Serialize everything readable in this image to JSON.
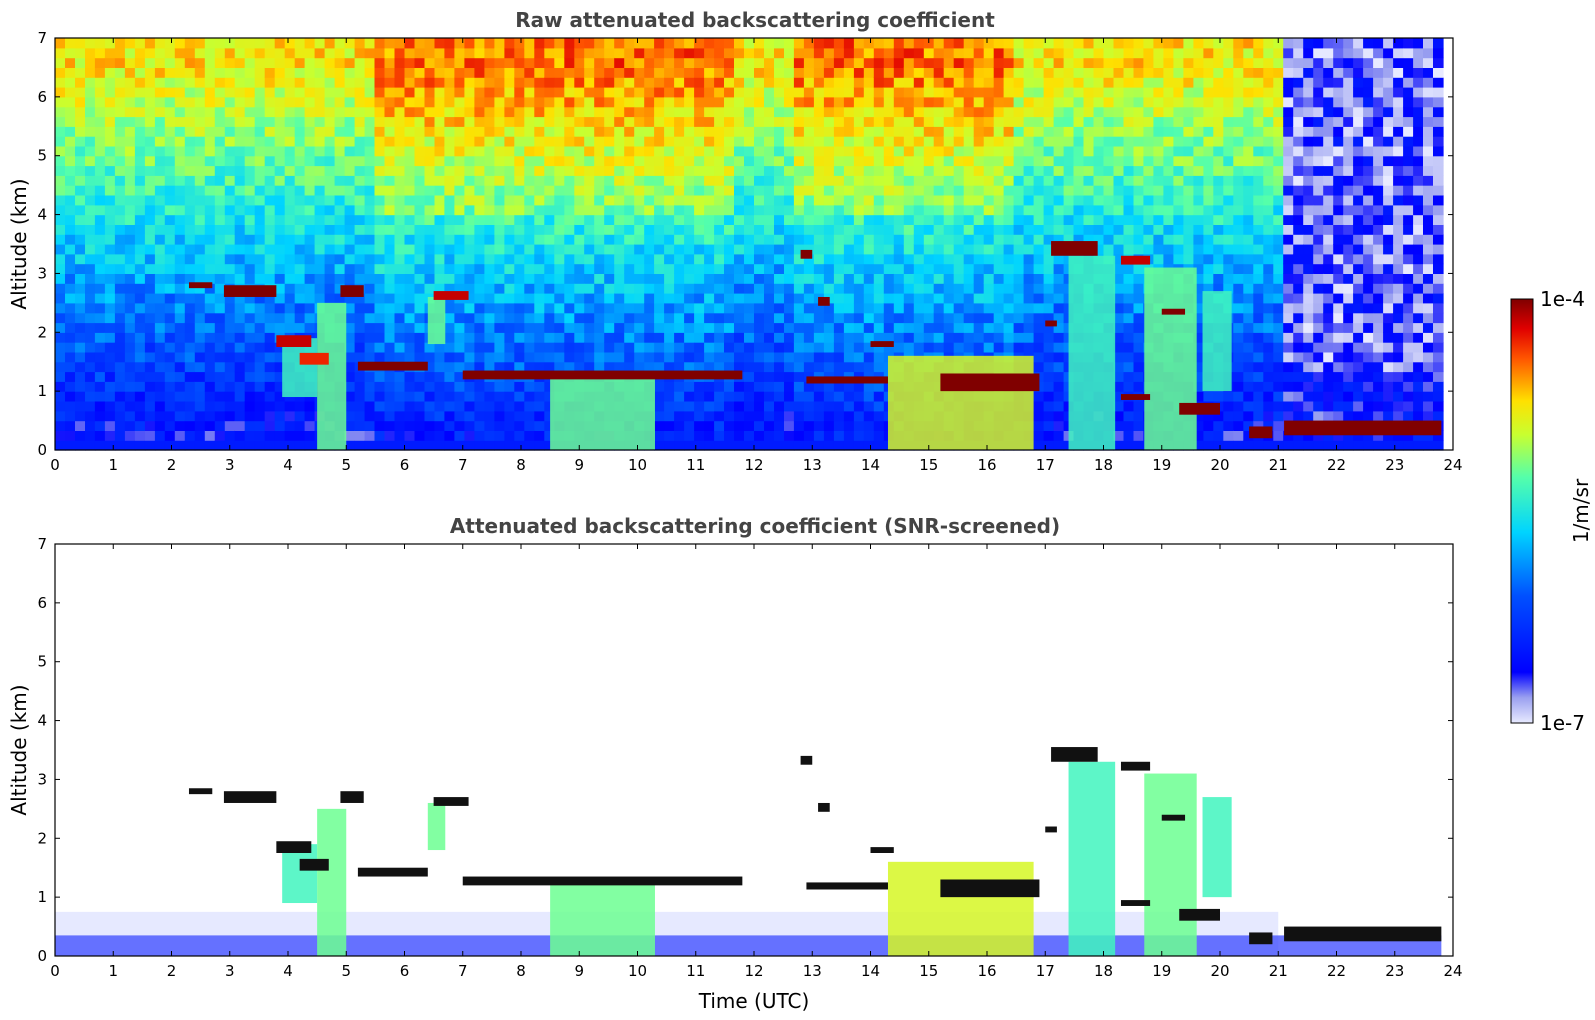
{
  "chart_data": [
    {
      "type": "heatmap",
      "title": "Raw attenuated backscattering coefficient",
      "xlabel": "",
      "ylabel": "Altitude (km)",
      "xlim": [
        0,
        24
      ],
      "ylim": [
        0,
        7
      ],
      "x_ticks": [
        "0",
        "1",
        "2",
        "3",
        "4",
        "5",
        "6",
        "7",
        "8",
        "9",
        "10",
        "11",
        "12",
        "13",
        "14",
        "15",
        "16",
        "17",
        "18",
        "19",
        "20",
        "21",
        "22",
        "23",
        "24"
      ],
      "y_ticks": [
        "0",
        "1",
        "2",
        "3",
        "4",
        "5",
        "6",
        "7"
      ],
      "background_noise": "high",
      "layers": [
        {
          "x": [
            2.3,
            2.7
          ],
          "y": [
            2.75,
            2.85
          ],
          "level": 1.0
        },
        {
          "x": [
            2.9,
            3.8
          ],
          "y": [
            2.6,
            2.8
          ],
          "level": 1.0
        },
        {
          "x": [
            3.8,
            4.4
          ],
          "y": [
            1.75,
            1.95
          ],
          "level": 0.95
        },
        {
          "x": [
            4.2,
            4.7
          ],
          "y": [
            1.45,
            1.65
          ],
          "level": 0.9
        },
        {
          "x": [
            4.9,
            5.3
          ],
          "y": [
            2.6,
            2.8
          ],
          "level": 1.0
        },
        {
          "x": [
            5.2,
            6.4
          ],
          "y": [
            1.35,
            1.5
          ],
          "level": 1.0
        },
        {
          "x": [
            6.5,
            7.1
          ],
          "y": [
            2.55,
            2.7
          ],
          "level": 0.95
        },
        {
          "x": [
            7.0,
            11.8
          ],
          "y": [
            1.2,
            1.35
          ],
          "level": 1.0
        },
        {
          "x": [
            12.8,
            13.0
          ],
          "y": [
            3.25,
            3.4
          ],
          "level": 1.0
        },
        {
          "x": [
            13.1,
            13.3
          ],
          "y": [
            2.45,
            2.6
          ],
          "level": 1.0
        },
        {
          "x": [
            12.9,
            14.3
          ],
          "y": [
            1.13,
            1.25
          ],
          "level": 1.0
        },
        {
          "x": [
            14.0,
            14.4
          ],
          "y": [
            1.75,
            1.85
          ],
          "level": 1.0
        },
        {
          "x": [
            15.2,
            16.9
          ],
          "y": [
            1.0,
            1.3
          ],
          "level": 1.0
        },
        {
          "x": [
            17.1,
            17.9
          ],
          "y": [
            3.3,
            3.55
          ],
          "level": 1.0
        },
        {
          "x": [
            18.3,
            18.8
          ],
          "y": [
            3.15,
            3.3
          ],
          "level": 0.95
        },
        {
          "x": [
            17.0,
            17.2
          ],
          "y": [
            2.1,
            2.2
          ],
          "level": 1.0
        },
        {
          "x": [
            19.0,
            19.4
          ],
          "y": [
            2.3,
            2.4
          ],
          "level": 1.0
        },
        {
          "x": [
            19.3,
            20.0
          ],
          "y": [
            0.6,
            0.8
          ],
          "level": 1.0
        },
        {
          "x": [
            18.3,
            18.8
          ],
          "y": [
            0.85,
            0.95
          ],
          "level": 1.0
        },
        {
          "x": [
            20.5,
            20.9
          ],
          "y": [
            0.2,
            0.4
          ],
          "level": 1.0
        },
        {
          "x": [
            21.1,
            23.8
          ],
          "y": [
            0.25,
            0.5
          ],
          "level": 1.0
        }
      ],
      "fall_streaks": [
        {
          "x": [
            3.9,
            4.5
          ],
          "y": [
            0.9,
            1.9
          ],
          "level": 0.55
        },
        {
          "x": [
            4.5,
            5.0
          ],
          "y": [
            0.0,
            2.5
          ],
          "level": 0.6
        },
        {
          "x": [
            6.4,
            6.7
          ],
          "y": [
            1.8,
            2.6
          ],
          "level": 0.6
        },
        {
          "x": [
            8.5,
            10.3
          ],
          "y": [
            0.0,
            1.25
          ],
          "level": 0.6
        },
        {
          "x": [
            14.3,
            16.8
          ],
          "y": [
            0.0,
            1.6
          ],
          "level": 0.7
        },
        {
          "x": [
            17.4,
            18.2
          ],
          "y": [
            0.0,
            3.3
          ],
          "level": 0.55
        },
        {
          "x": [
            18.7,
            19.6
          ],
          "y": [
            0.0,
            3.1
          ],
          "level": 0.6
        },
        {
          "x": [
            19.7,
            20.2
          ],
          "y": [
            1.0,
            2.7
          ],
          "level": 0.55
        }
      ]
    },
    {
      "type": "heatmap",
      "title": "Attenuated backscattering coefficient (SNR-screened)",
      "xlabel": "Time (UTC)",
      "ylabel": "Altitude (km)",
      "xlim": [
        0,
        24
      ],
      "ylim": [
        0,
        7
      ],
      "x_ticks": [
        "0",
        "1",
        "2",
        "3",
        "4",
        "5",
        "6",
        "7",
        "8",
        "9",
        "10",
        "11",
        "12",
        "13",
        "14",
        "15",
        "16",
        "17",
        "18",
        "19",
        "20",
        "21",
        "22",
        "23",
        "24"
      ],
      "y_ticks": [
        "0",
        "1",
        "2",
        "3",
        "4",
        "5",
        "6",
        "7"
      ],
      "background_noise": "screened",
      "same_layers_as": 0
    }
  ],
  "colorbar": {
    "max_label": "1e-4",
    "min_label": "1e-7",
    "unit": "1/m/sr",
    "colormap": "jet",
    "low_color": "#e6e8ff",
    "high_color": "#800000"
  }
}
